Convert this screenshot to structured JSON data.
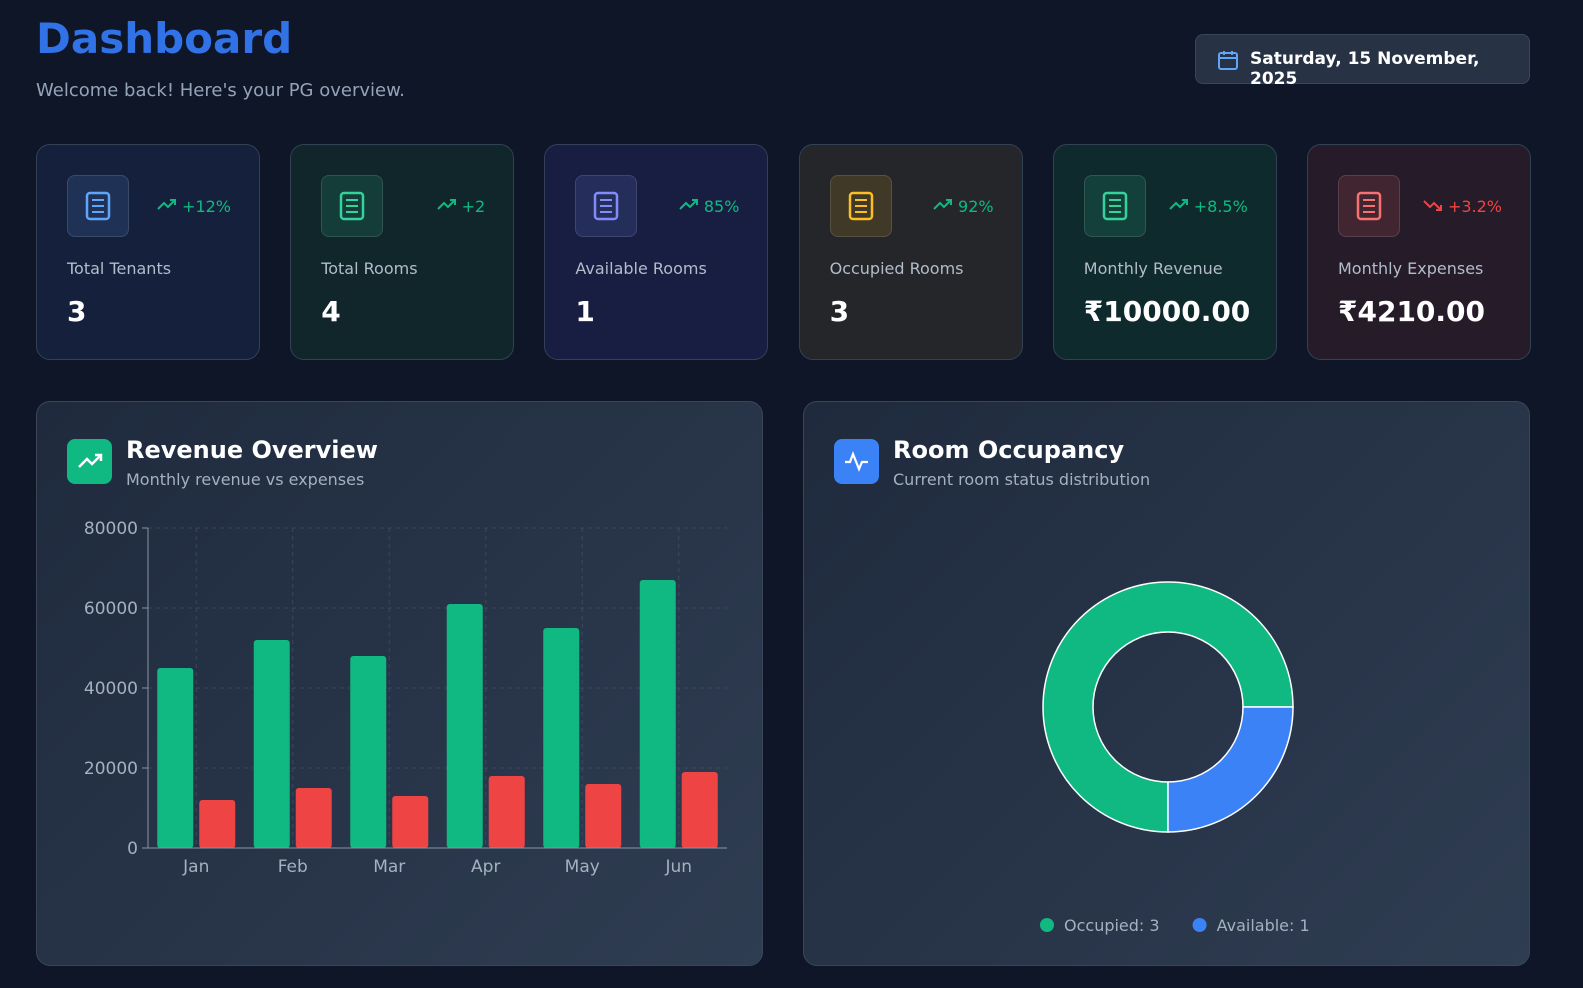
{
  "header": {
    "title": "Dashboard",
    "subtitle": "Welcome back! Here's your PG overview.",
    "date": "Saturday, 15 November, 2025"
  },
  "stats": [
    {
      "label": "Total Tenants",
      "value": "3",
      "change": "+12%",
      "color": "#60a5fa"
    },
    {
      "label": "Total Rooms",
      "value": "4",
      "change": "+2",
      "color": "#34d399"
    },
    {
      "label": "Available Rooms",
      "value": "1",
      "change": "85%",
      "color": "#818cf8"
    },
    {
      "label": "Occupied Rooms",
      "value": "3",
      "change": "92%",
      "color": "#fbbf24"
    },
    {
      "label": "Monthly Revenue",
      "value": "₹10000.00",
      "change": "+8.5%",
      "color": "#34d399"
    },
    {
      "label": "Monthly Expenses",
      "value": "₹4210.00",
      "change": "+3.2%",
      "color": "#f87171"
    }
  ],
  "chart_data": [
    {
      "type": "bar",
      "title": "Revenue Overview",
      "subtitle": "Monthly revenue vs expenses",
      "categories": [
        "Jan",
        "Feb",
        "Mar",
        "Apr",
        "May",
        "Jun"
      ],
      "series": [
        {
          "color": "#10b981",
          "values": [
            45000,
            52000,
            48000,
            61000,
            55000,
            67000
          ]
        },
        {
          "color": "#ef4444",
          "values": [
            12000,
            15000,
            13000,
            18000,
            16000,
            19000
          ]
        }
      ],
      "ylim": [
        0,
        80000
      ],
      "yticks": [
        0,
        20000,
        40000,
        60000,
        80000
      ],
      "grid": true
    },
    {
      "type": "pie",
      "title": "Room Occupancy",
      "subtitle": "Current room status distribution",
      "labels": [
        "Occupied: 3",
        "Available: 1"
      ],
      "values": [
        3,
        1
      ],
      "colors": [
        "#10b981",
        "#3b82f6"
      ]
    }
  ]
}
